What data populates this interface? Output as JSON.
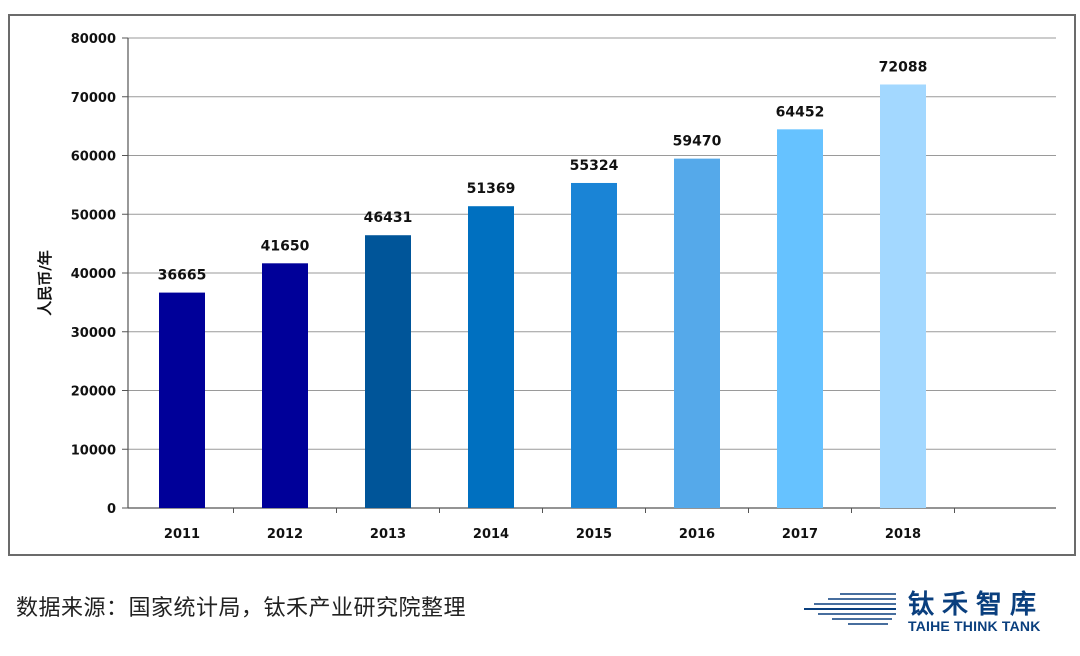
{
  "chart_data": {
    "type": "bar",
    "categories": [
      "2011",
      "2012",
      "2013",
      "2014",
      "2015",
      "2016",
      "2017",
      "2018"
    ],
    "values": [
      36665,
      41650,
      46431,
      51369,
      55324,
      59470,
      64452,
      72088
    ],
    "data_labels": [
      "36665",
      "41650",
      "46431",
      "51369",
      "55324",
      "59470",
      "64452",
      "72088"
    ],
    "ylabel": "人民币/年",
    "ylim": [
      0,
      80000
    ],
    "yticks": [
      "0",
      "10000",
      "20000",
      "30000",
      "40000",
      "50000",
      "60000",
      "70000",
      "80000"
    ],
    "grid": true,
    "bar_colors": [
      "#000099",
      "#000099",
      "#005599",
      "#0070C0",
      "#1A84D6",
      "#55A9EA",
      "#66C2FF",
      "#A3D8FF"
    ]
  },
  "source_note": "数据来源：国家统计局，钛禾产业研究院整理",
  "brand": {
    "name_cn": "钛禾智库",
    "name_en": "TAIHE THINK TANK",
    "color": "#0a3f7e"
  }
}
